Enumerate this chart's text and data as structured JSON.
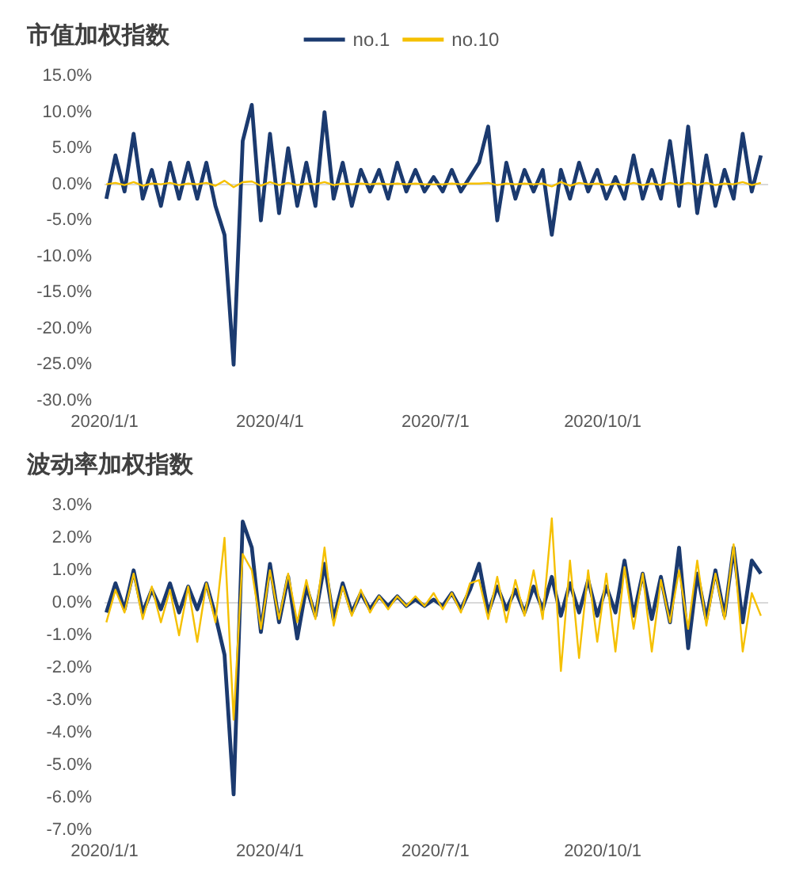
{
  "chart_data": [
    {
      "type": "line",
      "title": "市值加权指数",
      "legend": "top",
      "marker": "none",
      "grid": false,
      "x": [
        "2020-01-02",
        "2020-01-07",
        "2020-01-12",
        "2020-01-17",
        "2020-01-22",
        "2020-01-27",
        "2020-02-01",
        "2020-02-06",
        "2020-02-11",
        "2020-02-16",
        "2020-02-21",
        "2020-02-26",
        "2020-03-02",
        "2020-03-07",
        "2020-03-12",
        "2020-03-17",
        "2020-03-22",
        "2020-03-27",
        "2020-04-01",
        "2020-04-06",
        "2020-04-11",
        "2020-04-16",
        "2020-04-21",
        "2020-04-26",
        "2020-05-01",
        "2020-05-06",
        "2020-05-11",
        "2020-05-16",
        "2020-05-21",
        "2020-05-26",
        "2020-05-31",
        "2020-06-05",
        "2020-06-10",
        "2020-06-15",
        "2020-06-20",
        "2020-06-25",
        "2020-06-30",
        "2020-07-05",
        "2020-07-10",
        "2020-07-15",
        "2020-07-20",
        "2020-07-25",
        "2020-07-30",
        "2020-08-04",
        "2020-08-09",
        "2020-08-14",
        "2020-08-19",
        "2020-08-24",
        "2020-08-29",
        "2020-09-03",
        "2020-09-08",
        "2020-09-13",
        "2020-09-18",
        "2020-09-23",
        "2020-09-28",
        "2020-10-03",
        "2020-10-08",
        "2020-10-13",
        "2020-10-18",
        "2020-10-23",
        "2020-10-28",
        "2020-11-02",
        "2020-11-07",
        "2020-11-12",
        "2020-11-17",
        "2020-11-22",
        "2020-11-27",
        "2020-12-02",
        "2020-12-07",
        "2020-12-12",
        "2020-12-17",
        "2020-12-22",
        "2020-12-27"
      ],
      "series": [
        {
          "name": "no.1",
          "color": "#1b3a6f",
          "values": [
            -2,
            4,
            -1,
            7,
            -2,
            2,
            -3,
            3,
            -2,
            3,
            -2,
            3,
            -3,
            -7,
            -25,
            6,
            11,
            -5,
            7,
            -4,
            5,
            -3,
            3,
            -3,
            10,
            -2,
            3,
            -3,
            2,
            -1,
            2,
            -2,
            3,
            -1,
            2,
            -1,
            1,
            -1,
            2,
            -1,
            1,
            3,
            8,
            -5,
            3,
            -2,
            2,
            -1,
            2,
            -7,
            2,
            -2,
            3,
            -1,
            2,
            -2,
            1,
            -2,
            4,
            -2,
            2,
            -2,
            6,
            -3,
            8,
            -4,
            4,
            -3,
            2,
            -2,
            7,
            -1,
            4
          ]
        },
        {
          "name": "no.10",
          "color": "#f5c000",
          "values": [
            0,
            0.2,
            -0.1,
            0.3,
            -0.2,
            0.1,
            0,
            0.2,
            -0.1,
            0.1,
            0,
            0.2,
            -0.2,
            0.5,
            -0.4,
            0.3,
            0.4,
            -0.2,
            0.3,
            -0.1,
            0.2,
            -0.1,
            0.1,
            0,
            0.3,
            -0.1,
            0.1,
            0,
            0.1,
            0,
            0.1,
            0,
            0.1,
            0,
            0.1,
            0,
            0,
            0,
            0.1,
            0,
            0.1,
            0.1,
            0.2,
            -0.1,
            0.1,
            0,
            0.1,
            0,
            0.1,
            -0.3,
            0.3,
            -0.2,
            0.2,
            0,
            0.1,
            -0.1,
            0.1,
            -0.1,
            0.2,
            -0.1,
            0.1,
            -0.1,
            0.2,
            -0.1,
            0.2,
            -0.1,
            0.2,
            -0.1,
            0.1,
            0,
            0.3,
            -0.1,
            0.2
          ]
        }
      ],
      "xlim": [
        "2020-01-01",
        "2020-12-31"
      ],
      "xticks": [
        {
          "value": "2020-01-01",
          "label": "2020/1/1"
        },
        {
          "value": "2020-04-01",
          "label": "2020/4/1"
        },
        {
          "value": "2020-07-01",
          "label": "2020/7/1"
        },
        {
          "value": "2020-10-01",
          "label": "2020/10/1"
        }
      ],
      "ylim": [
        -30,
        15
      ],
      "yticks": [
        {
          "value": -30,
          "label": "-30.0%"
        },
        {
          "value": -25,
          "label": "-25.0%"
        },
        {
          "value": -20,
          "label": "-20.0%"
        },
        {
          "value": -15,
          "label": "-15.0%"
        },
        {
          "value": -10,
          "label": "-10.0%"
        },
        {
          "value": -5,
          "label": "-5.0%"
        },
        {
          "value": 0,
          "label": "0.0%"
        },
        {
          "value": 5,
          "label": "5.0%"
        },
        {
          "value": 10,
          "label": "10.0%"
        },
        {
          "value": 15,
          "label": "15.0%"
        }
      ],
      "ref_lines": [
        {
          "axis": "y",
          "value": 0,
          "color": "#d9d9d9"
        }
      ]
    },
    {
      "type": "line",
      "title": "波动率加权指数",
      "legend": false,
      "marker": "none",
      "grid": false,
      "x": [
        "2020-01-02",
        "2020-01-07",
        "2020-01-12",
        "2020-01-17",
        "2020-01-22",
        "2020-01-27",
        "2020-02-01",
        "2020-02-06",
        "2020-02-11",
        "2020-02-16",
        "2020-02-21",
        "2020-02-26",
        "2020-03-02",
        "2020-03-07",
        "2020-03-12",
        "2020-03-17",
        "2020-03-22",
        "2020-03-27",
        "2020-04-01",
        "2020-04-06",
        "2020-04-11",
        "2020-04-16",
        "2020-04-21",
        "2020-04-26",
        "2020-05-01",
        "2020-05-06",
        "2020-05-11",
        "2020-05-16",
        "2020-05-21",
        "2020-05-26",
        "2020-05-31",
        "2020-06-05",
        "2020-06-10",
        "2020-06-15",
        "2020-06-20",
        "2020-06-25",
        "2020-06-30",
        "2020-07-05",
        "2020-07-10",
        "2020-07-15",
        "2020-07-20",
        "2020-07-25",
        "2020-07-30",
        "2020-08-04",
        "2020-08-09",
        "2020-08-14",
        "2020-08-19",
        "2020-08-24",
        "2020-08-29",
        "2020-09-03",
        "2020-09-08",
        "2020-09-13",
        "2020-09-18",
        "2020-09-23",
        "2020-09-28",
        "2020-10-03",
        "2020-10-08",
        "2020-10-13",
        "2020-10-18",
        "2020-10-23",
        "2020-10-28",
        "2020-11-02",
        "2020-11-07",
        "2020-11-12",
        "2020-11-17",
        "2020-11-22",
        "2020-11-27",
        "2020-12-02",
        "2020-12-07",
        "2020-12-12",
        "2020-12-17",
        "2020-12-22",
        "2020-12-27"
      ],
      "series": [
        {
          "color": "#1b3a6f",
          "values": [
            -0.3,
            0.6,
            -0.2,
            1.0,
            -0.3,
            0.4,
            -0.2,
            0.6,
            -0.3,
            0.5,
            -0.2,
            0.6,
            -0.4,
            -1.6,
            -5.9,
            2.5,
            1.7,
            -0.9,
            1.2,
            -0.6,
            0.8,
            -1.1,
            0.5,
            -0.4,
            1.2,
            -0.5,
            0.6,
            -0.3,
            0.3,
            -0.2,
            0.2,
            -0.1,
            0.2,
            -0.1,
            0.1,
            -0.1,
            0.1,
            -0.1,
            0.3,
            -0.2,
            0.4,
            1.2,
            -0.3,
            0.5,
            -0.2,
            0.4,
            -0.3,
            0.5,
            -0.2,
            0.8,
            -0.4,
            0.6,
            -0.3,
            0.7,
            -0.4,
            0.5,
            -0.3,
            1.3,
            -0.4,
            0.9,
            -0.5,
            0.8,
            -0.6,
            1.7,
            -1.4,
            0.9,
            -0.5,
            1.0,
            -0.4,
            1.7,
            -0.6,
            1.3,
            0.9
          ]
        },
        {
          "color": "#f5c000",
          "values": [
            -0.6,
            0.4,
            -0.3,
            0.9,
            -0.5,
            0.5,
            -0.6,
            0.4,
            -1.0,
            0.5,
            -1.2,
            0.6,
            -0.6,
            2.0,
            -3.6,
            1.5,
            1.0,
            -0.8,
            1.0,
            -0.5,
            0.9,
            -0.6,
            0.7,
            -0.5,
            1.7,
            -0.7,
            0.5,
            -0.4,
            0.4,
            -0.3,
            0.2,
            -0.2,
            0.2,
            -0.1,
            0.2,
            -0.1,
            0.3,
            -0.2,
            0.3,
            -0.3,
            0.6,
            0.7,
            -0.5,
            0.8,
            -0.6,
            0.7,
            -0.4,
            1.0,
            -0.5,
            2.6,
            -2.1,
            1.3,
            -1.7,
            1.0,
            -1.2,
            0.9,
            -1.5,
            1.1,
            -0.8,
            0.9,
            -1.5,
            0.7,
            -0.6,
            1.0,
            -0.8,
            1.3,
            -0.7,
            0.9,
            -0.5,
            1.8,
            -1.5,
            0.3,
            -0.4
          ]
        }
      ],
      "xlim": [
        "2020-01-01",
        "2020-12-31"
      ],
      "xticks": [
        {
          "value": "2020-01-01",
          "label": "2020/1/1"
        },
        {
          "value": "2020-04-01",
          "label": "2020/4/1"
        },
        {
          "value": "2020-07-01",
          "label": "2020/7/1"
        },
        {
          "value": "2020-10-01",
          "label": "2020/10/1"
        }
      ],
      "ylim": [
        -7,
        3
      ],
      "yticks": [
        {
          "value": -7,
          "label": "-7.0%"
        },
        {
          "value": -6,
          "label": "-6.0%"
        },
        {
          "value": -5,
          "label": "-5.0%"
        },
        {
          "value": -4,
          "label": "-4.0%"
        },
        {
          "value": -3,
          "label": "-3.0%"
        },
        {
          "value": -2,
          "label": "-2.0%"
        },
        {
          "value": -1,
          "label": "-1.0%"
        },
        {
          "value": 0,
          "label": "0.0%"
        },
        {
          "value": 1,
          "label": "1.0%"
        },
        {
          "value": 2,
          "label": "2.0%"
        },
        {
          "value": 3,
          "label": "3.0%"
        }
      ],
      "ref_lines": [
        {
          "axis": "y",
          "value": 0,
          "color": "#d9d9d9"
        }
      ]
    }
  ]
}
